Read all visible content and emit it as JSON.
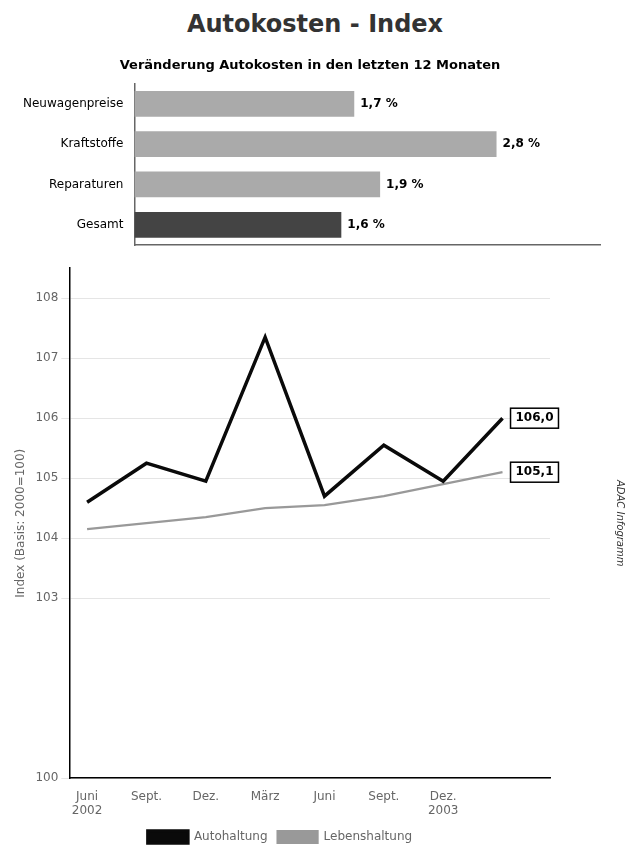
{
  "chart_data": [
    {
      "type": "line",
      "title": "Autokosten - Index",
      "ylabel": "Index (Basis: 2000=100)",
      "x": [
        0,
        1,
        2,
        3,
        4,
        5,
        6,
        7
      ],
      "series": [
        {
          "name": "Autohaltung",
          "color": "#0a0a0a",
          "values": [
            104.6,
            105.25,
            104.95,
            107.35,
            104.7,
            105.55,
            104.95,
            106.0
          ]
        },
        {
          "name": "Lebenshaltung",
          "color": "#999999",
          "values": [
            104.15,
            104.25,
            104.35,
            104.5,
            104.55,
            104.7,
            104.9,
            105.1
          ]
        }
      ],
      "xlim": [
        -0.3,
        7.8
      ],
      "xticks": [
        {
          "value": 0,
          "label": "Juni\n2002"
        },
        {
          "value": 1,
          "label": "Sept."
        },
        {
          "value": 2,
          "label": "Dez."
        },
        {
          "value": 3,
          "label": "März"
        },
        {
          "value": 4,
          "label": "Juni"
        },
        {
          "value": 5,
          "label": "Sept."
        },
        {
          "value": 6,
          "label": "Dez.\n2003"
        }
      ],
      "ylim": [
        100,
        108.5
      ],
      "yticks": [
        100,
        103,
        104,
        105,
        106,
        107,
        108
      ],
      "grid": true,
      "legend": "bottom",
      "annotations": [
        {
          "text": "106,0",
          "series": "Autohaltung"
        },
        {
          "text": "105,1",
          "series": "Lebenshaltung"
        },
        {
          "text": "ADAC Infogramm"
        }
      ]
    },
    {
      "type": "bar",
      "orientation": "horizontal",
      "title": "Veränderung Autokosten in den letzten 12 Monaten",
      "categories": [
        "Neuwagenpreise",
        "Kraftstoffe",
        "Reparaturen",
        "Gesamt"
      ],
      "values": [
        1.7,
        2.8,
        1.9,
        1.6
      ],
      "value_labels": [
        "1,7 %",
        "2,8 %",
        "1,9 %",
        "1,6 %"
      ],
      "colors": [
        "#aaaaaa",
        "#aaaaaa",
        "#aaaaaa",
        "#444444"
      ],
      "xlim": [
        0,
        3.6
      ],
      "tick_labels": "y",
      "data_labels": true
    }
  ]
}
